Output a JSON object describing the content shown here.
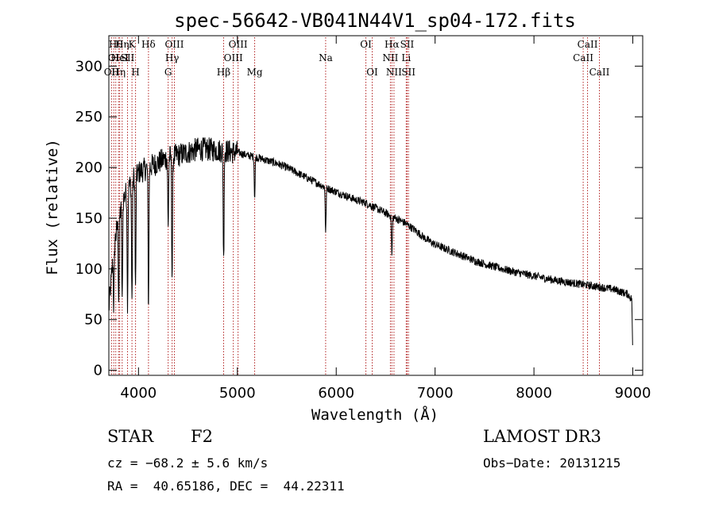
{
  "chart_data": {
    "type": "line",
    "title": "spec-56642-VB041N44V1_sp04-172.fits",
    "xlabel": "Wavelength (Å)",
    "ylabel": "Flux (relative)",
    "xlim": [
      3700,
      9100
    ],
    "ylim": [
      -5,
      330
    ],
    "xticks": [
      {
        "value": 4000,
        "label": "4000"
      },
      {
        "value": 5000,
        "label": "5000"
      },
      {
        "value": 6000,
        "label": "6000"
      },
      {
        "value": 7000,
        "label": "7000"
      },
      {
        "value": 8000,
        "label": "8000"
      },
      {
        "value": 9000,
        "label": "9000"
      }
    ],
    "yticks": [
      {
        "value": 0,
        "label": "0"
      },
      {
        "value": 50,
        "label": "50"
      },
      {
        "value": 100,
        "label": "100"
      },
      {
        "value": 150,
        "label": "150"
      },
      {
        "value": 200,
        "label": "200"
      },
      {
        "value": 250,
        "label": "250"
      },
      {
        "value": 300,
        "label": "300"
      }
    ],
    "continuum": {
      "x": [
        3700,
        3750,
        3800,
        3850,
        3900,
        3950,
        4000,
        4100,
        4200,
        4300,
        4400,
        4500,
        4600,
        4700,
        4800,
        4900,
        5000,
        5100,
        5200,
        5300,
        5400,
        5500,
        5600,
        5700,
        5800,
        5900,
        6000,
        6100,
        6200,
        6300,
        6400,
        6500,
        6600,
        6700,
        6800,
        6900,
        7000,
        7200,
        7400,
        7600,
        7800,
        8000,
        8200,
        8400,
        8600,
        8800,
        8950,
        8990,
        9000
      ],
      "y": [
        60,
        120,
        150,
        170,
        180,
        190,
        195,
        200,
        205,
        210,
        212,
        215,
        218,
        218,
        217,
        216,
        215,
        212,
        210,
        207,
        204,
        200,
        195,
        190,
        185,
        180,
        176,
        172,
        168,
        165,
        160,
        155,
        150,
        145,
        138,
        130,
        124,
        116,
        108,
        102,
        97,
        93,
        89,
        86,
        83,
        80,
        75,
        70,
        10
      ]
    },
    "absorption_dips": [
      {
        "x": 3750,
        "depth": 60
      },
      {
        "x": 3800,
        "depth": 80
      },
      {
        "x": 3835,
        "depth": 100
      },
      {
        "x": 3889,
        "depth": 110
      },
      {
        "x": 3934,
        "depth": 120
      },
      {
        "x": 3970,
        "depth": 115
      },
      {
        "x": 4101,
        "depth": 140
      },
      {
        "x": 4300,
        "depth": 70
      },
      {
        "x": 4340,
        "depth": 120
      },
      {
        "x": 4861,
        "depth": 110
      },
      {
        "x": 5175,
        "depth": 40
      },
      {
        "x": 5893,
        "depth": 45
      },
      {
        "x": 6563,
        "depth": 40
      }
    ],
    "noise_amplitude": 4,
    "spectral_lines": [
      {
        "x": 3727,
        "label": "OII",
        "row": 3
      },
      {
        "x": 3750,
        "label": "OI",
        "row": 2
      },
      {
        "x": 3770,
        "label": "Hθ",
        "row": 1
      },
      {
        "x": 3798,
        "label": "Hη",
        "row": 3
      },
      {
        "x": 3810,
        "label": "HeI",
        "row": 2
      },
      {
        "x": 3835,
        "label": "Hη",
        "row": 1
      },
      {
        "x": 3889,
        "label": "SII",
        "row": 2
      },
      {
        "x": 3934,
        "label": "K",
        "row": 1
      },
      {
        "x": 3970,
        "label": "H",
        "row": 3
      },
      {
        "x": 4101,
        "label": "Hδ",
        "row": 1
      },
      {
        "x": 4300,
        "label": "G",
        "row": 3
      },
      {
        "x": 4340,
        "label": "Hγ",
        "row": 2
      },
      {
        "x": 4363,
        "label": "OIII",
        "row": 1
      },
      {
        "x": 4861,
        "label": "Hβ",
        "row": 3
      },
      {
        "x": 4959,
        "label": "OIII",
        "row": 2
      },
      {
        "x": 5007,
        "label": "OIII",
        "row": 1
      },
      {
        "x": 5175,
        "label": "Mg",
        "row": 3
      },
      {
        "x": 5893,
        "label": "Na",
        "row": 2
      },
      {
        "x": 6300,
        "label": "OI",
        "row": 1
      },
      {
        "x": 6364,
        "label": "OI",
        "row": 3
      },
      {
        "x": 6548,
        "label": "NII",
        "row": 2
      },
      {
        "x": 6563,
        "label": "Hα",
        "row": 1
      },
      {
        "x": 6584,
        "label": "NII",
        "row": 3
      },
      {
        "x": 6708,
        "label": "Li",
        "row": 2
      },
      {
        "x": 6717,
        "label": "SII",
        "row": 1
      },
      {
        "x": 6731,
        "label": "SII",
        "row": 3
      },
      {
        "x": 8498,
        "label": "CaII",
        "row": 2
      },
      {
        "x": 8542,
        "label": "CaII",
        "row": 1
      },
      {
        "x": 8662,
        "label": "CaII",
        "row": 3
      }
    ],
    "colors": {
      "spectrum": "#000000",
      "lines": "#b22222",
      "axes": "#000000"
    }
  },
  "info": {
    "class": "STAR",
    "subclass": "F2",
    "survey": "LAMOST DR3",
    "cz": "cz = −68.2 ± 5.6 km/s",
    "obs_date": "Obs−Date: 20131215",
    "radec": "RA =  40.65186, DEC =  44.22311"
  }
}
